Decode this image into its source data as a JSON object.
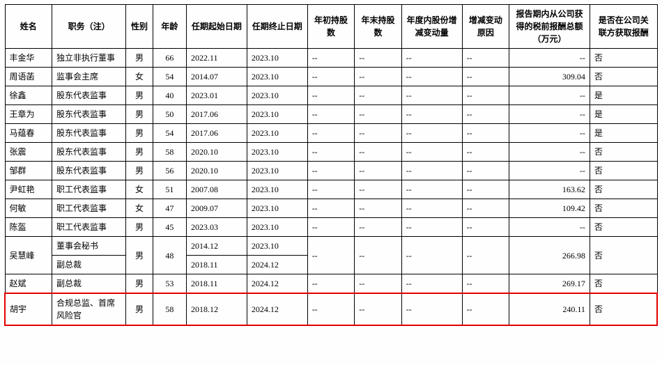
{
  "columns": [
    "姓名",
    "职务（注）",
    "性别",
    "年龄",
    "任期起始日期",
    "任期终止日期",
    "年初持股数",
    "年末持股数",
    "年度内股份增减变动量",
    "增减变动原因",
    "报告期内从公司获得的税前报酬总额（万元）",
    "是否在公司关联方获取报酬"
  ],
  "col_widths": [
    "7%",
    "11%",
    "4%",
    "5%",
    "9%",
    "9%",
    "7%",
    "7%",
    "9%",
    "7%",
    "12%",
    "10%"
  ],
  "rows": [
    {
      "c": [
        "丰金华",
        "独立非执行董事",
        "男",
        "66",
        "2022.11",
        "2023.10",
        "--",
        "--",
        "--",
        "--",
        "--",
        "否"
      ]
    },
    {
      "c": [
        "周语菡",
        "监事会主席",
        "女",
        "54",
        "2014.07",
        "2023.10",
        "--",
        "--",
        "--",
        "--",
        "309.04",
        "否"
      ]
    },
    {
      "c": [
        "徐鑫",
        "股东代表监事",
        "男",
        "40",
        "2023.01",
        "2023.10",
        "--",
        "--",
        "--",
        "--",
        "--",
        "是"
      ]
    },
    {
      "c": [
        "王章为",
        "股东代表监事",
        "男",
        "50",
        "2017.06",
        "2023.10",
        "--",
        "--",
        "--",
        "--",
        "--",
        "是"
      ]
    },
    {
      "c": [
        "马蕴春",
        "股东代表监事",
        "男",
        "54",
        "2017.06",
        "2023.10",
        "--",
        "--",
        "--",
        "--",
        "--",
        "是"
      ]
    },
    {
      "c": [
        "张震",
        "股东代表监事",
        "男",
        "58",
        "2020.10",
        "2023.10",
        "--",
        "--",
        "--",
        "--",
        "--",
        "否"
      ]
    },
    {
      "c": [
        "邹群",
        "股东代表监事",
        "男",
        "56",
        "2020.10",
        "2023.10",
        "--",
        "--",
        "--",
        "--",
        "--",
        "否"
      ]
    },
    {
      "c": [
        "尹虹艳",
        "职工代表监事",
        "女",
        "51",
        "2007.08",
        "2023.10",
        "--",
        "--",
        "--",
        "--",
        "163.62",
        "否"
      ]
    },
    {
      "c": [
        "何敏",
        "职工代表监事",
        "女",
        "47",
        "2009.07",
        "2023.10",
        "--",
        "--",
        "--",
        "--",
        "109.42",
        "否"
      ]
    },
    {
      "c": [
        "陈盔",
        "职工代表监事",
        "男",
        "45",
        "2023.03",
        "2023.10",
        "--",
        "--",
        "--",
        "--",
        "--",
        "否"
      ]
    },
    {
      "split": true,
      "name": "吴慧峰",
      "gender": "男",
      "age": "48",
      "pos": [
        "董事会秘书",
        "副总裁"
      ],
      "start": [
        "2014.12",
        "2018.11"
      ],
      "end": [
        "2023.10",
        "2024.12"
      ],
      "c7": "--",
      "c8": "--",
      "c9": "--",
      "c10": "--",
      "c11": "266.98",
      "c12": "否"
    },
    {
      "c": [
        "赵斌",
        "副总裁",
        "男",
        "53",
        "2018.11",
        "2024.12",
        "--",
        "--",
        "--",
        "--",
        "269.17",
        "否"
      ]
    },
    {
      "c": [
        "胡宇",
        "合规总监、首席风险官",
        "男",
        "58",
        "2018.12",
        "2024.12",
        "--",
        "--",
        "--",
        "--",
        "240.11",
        "否"
      ],
      "highlight": true
    }
  ],
  "align": [
    "txt",
    "txt",
    "ctr",
    "ctr",
    "txt",
    "txt",
    "txt",
    "txt",
    "txt",
    "txt",
    "num",
    "txt"
  ]
}
